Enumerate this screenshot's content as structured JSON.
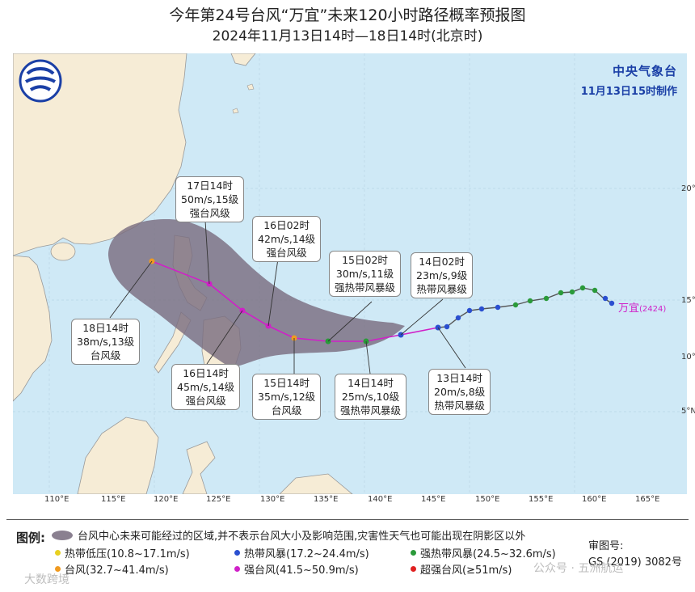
{
  "title": {
    "line1": "今年第24号台风“万宜”未来120小时路径概率预报图",
    "line2": "2024年11月13日14时—18日14时(北京时)"
  },
  "agency": {
    "name": "中央气象台",
    "issued": "11月13日15时制作"
  },
  "typhoon_label": {
    "name": "万宜",
    "code": "(2424)"
  },
  "callouts": {
    "c17": {
      "time": "17日14时",
      "wind": "50m/s,15级",
      "level": "强台风级"
    },
    "c16_02": {
      "time": "16日02时",
      "wind": "42m/s,14级",
      "level": "强台风级"
    },
    "c15_02": {
      "time": "15日02时",
      "wind": "30m/s,11级",
      "level": "强热带风暴级"
    },
    "c14_02": {
      "time": "14日02时",
      "wind": "23m/s,9级",
      "level": "热带风暴级"
    },
    "c18": {
      "time": "18日14时",
      "wind": "38m/s,13级",
      "level": "台风级"
    },
    "c16_14": {
      "time": "16日14时",
      "wind": "45m/s,14级",
      "level": "强台风级"
    },
    "c15_14": {
      "time": "15日14时",
      "wind": "35m/s,12级",
      "level": "台风级"
    },
    "c14_14": {
      "time": "14日14时",
      "wind": "25m/s,10级",
      "level": "强热带风暴级"
    },
    "c13_14": {
      "time": "13日14时",
      "wind": "20m/s,8级",
      "level": "热带风暴级"
    }
  },
  "axis": {
    "lon_labels": [
      "110°E",
      "115°E",
      "120°E",
      "125°E",
      "130°E",
      "135°E",
      "140°E",
      "145°E",
      "150°E",
      "155°E",
      "160°E",
      "165°E"
    ],
    "lat_labels": [
      "20°N",
      "15°N",
      "10°N",
      "5°N"
    ]
  },
  "legend": {
    "title": "图例:",
    "area_desc": "台风中心未来可能经过的区域,并不表示台风大小及影响范围,灾害性天气也可能出现在阴影区以外",
    "items": [
      {
        "label": "热带低压(10.8~17.1m/s)",
        "color": "#e8d020"
      },
      {
        "label": "热带风暴(17.2~24.4m/s)",
        "color": "#2a4fd0"
      },
      {
        "label": "强热带风暴(24.5~32.6m/s)",
        "color": "#2a9a3a"
      },
      {
        "label": "台风(32.7~41.4m/s)",
        "color": "#f09a20"
      },
      {
        "label": "强台风(41.5~50.9m/s)",
        "color": "#d020c8"
      },
      {
        "label": "超强台风(≥51m/s)",
        "color": "#e02020"
      }
    ],
    "approval_title": "审图号:",
    "approval_no": "GS (2019) 3082号"
  },
  "watermarks": {
    "left": "大数跨境",
    "right": "公众号 · 五洲航运"
  },
  "colors": {
    "sea": "#cfe9f6",
    "land": "#f6ecd6",
    "track": "#d020c8",
    "uncertainty": "#7a6e80",
    "agency_text": "#1a3fa6"
  }
}
